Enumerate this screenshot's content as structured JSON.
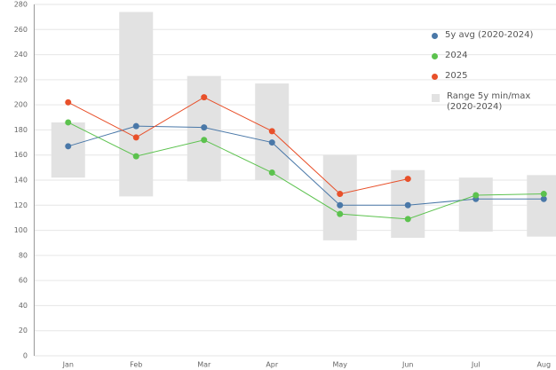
{
  "chart_data": {
    "type": "line",
    "categories": [
      "Jan",
      "Feb",
      "Mar",
      "Apr",
      "May",
      "Jun",
      "Jul",
      "Aug"
    ],
    "ylim": [
      0,
      280
    ],
    "yticks": [
      0,
      20,
      40,
      60,
      80,
      100,
      120,
      140,
      160,
      180,
      200,
      220,
      240,
      260,
      280
    ],
    "grid": true,
    "series": [
      {
        "name": "5y avg (2020-2024)",
        "color": "#4a78a8",
        "values": [
          167,
          183,
          182,
          170,
          120,
          120,
          125,
          125
        ]
      },
      {
        "name": "2024",
        "color": "#5cc24e",
        "values": [
          186,
          159,
          172,
          146,
          113,
          109,
          128,
          129
        ]
      },
      {
        "name": "2025",
        "color": "#e8502a",
        "values": [
          202,
          174,
          206,
          179,
          129,
          141,
          null,
          null
        ]
      },
      {
        "name": "Range 5y min/max (2020-2024)",
        "color": "#e2e2e2",
        "low": [
          142,
          127,
          139,
          140,
          92,
          94,
          99,
          95
        ],
        "high": [
          186,
          274,
          223,
          217,
          160,
          148,
          142,
          144
        ]
      }
    ]
  }
}
